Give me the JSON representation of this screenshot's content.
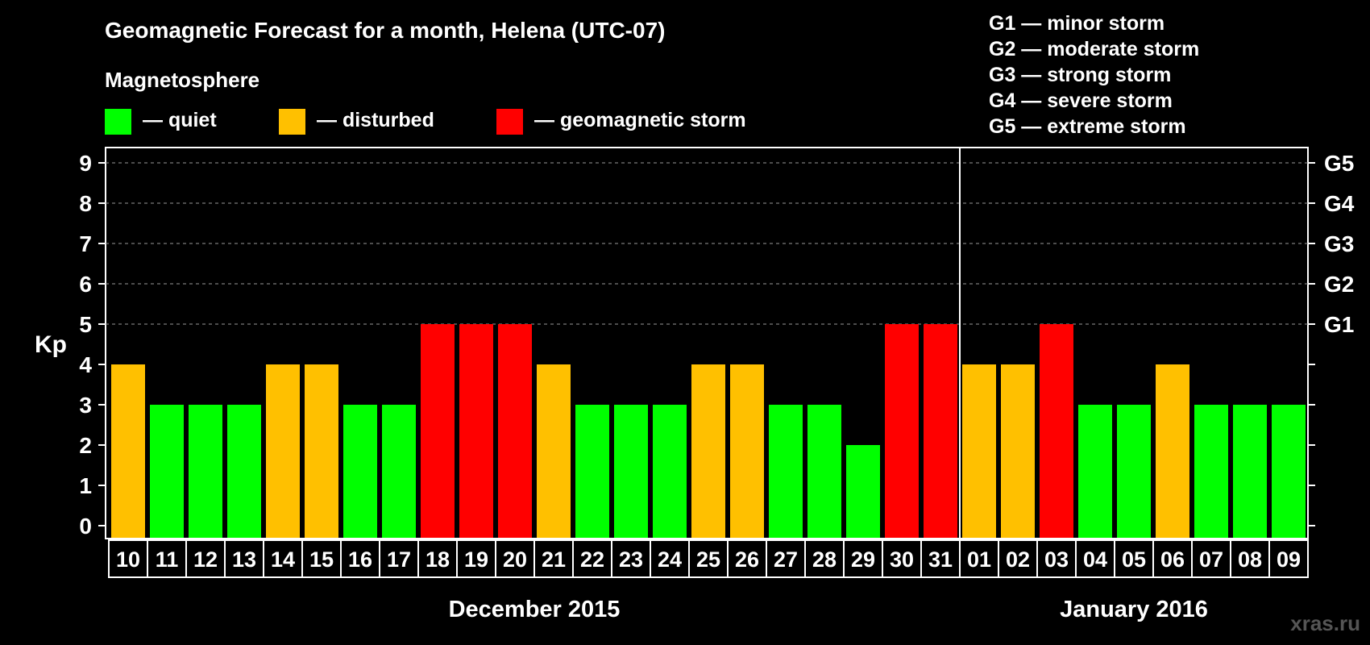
{
  "chart_data": {
    "type": "bar",
    "title": "Geomagnetic Forecast for a month, Helena (UTC-07)",
    "legend_title": "Magnetosphere",
    "legend": [
      {
        "label": "— quiet",
        "color": "#00ff00"
      },
      {
        "label": "— disturbed",
        "color": "#ffc000"
      },
      {
        "label": "— geomagnetic storm",
        "color": "#ff0000"
      }
    ],
    "storm_scale": [
      "G1 — minor storm",
      "G2 — moderate storm",
      "G3 — strong storm",
      "G4 — severe storm",
      "G5 — extreme storm"
    ],
    "ylabel": "Kp",
    "ylim": [
      0,
      9
    ],
    "y_ticks": [
      "0",
      "1",
      "2",
      "3",
      "4",
      "5",
      "6",
      "7",
      "8",
      "9"
    ],
    "right_ticks": [
      {
        "kp": 5,
        "label": "G1"
      },
      {
        "kp": 6,
        "label": "G2"
      },
      {
        "kp": 7,
        "label": "G3"
      },
      {
        "kp": 8,
        "label": "G4"
      },
      {
        "kp": 9,
        "label": "G5"
      }
    ],
    "grid": "dashed lines at Kp 5 to 9",
    "categories": [
      "10",
      "11",
      "12",
      "13",
      "14",
      "15",
      "16",
      "17",
      "18",
      "19",
      "20",
      "21",
      "22",
      "23",
      "24",
      "25",
      "26",
      "27",
      "28",
      "29",
      "30",
      "31",
      "01",
      "02",
      "03",
      "04",
      "05",
      "06",
      "07",
      "08",
      "09"
    ],
    "values": [
      4,
      3,
      3,
      3,
      4,
      4,
      3,
      3,
      5,
      5,
      5,
      4,
      3,
      3,
      3,
      4,
      4,
      3,
      3,
      2,
      5,
      5,
      4,
      4,
      5,
      3,
      3,
      4,
      3,
      3,
      3
    ],
    "months": [
      {
        "label": "December 2015",
        "first_index": 0,
        "last_index": 21
      },
      {
        "label": "January 2016",
        "first_index": 22,
        "last_index": 30
      }
    ],
    "color_rule": {
      "quiet": "Kp below 4",
      "disturbed": "Kp 4",
      "storm": "Kp 5 and above"
    }
  },
  "watermark": "xras.ru"
}
